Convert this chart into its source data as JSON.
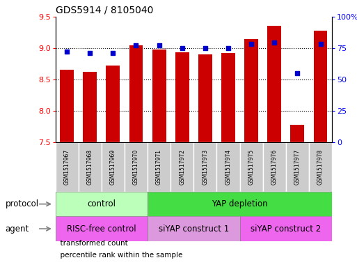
{
  "title": "GDS5914 / 8105040",
  "samples": [
    "GSM1517967",
    "GSM1517968",
    "GSM1517969",
    "GSM1517970",
    "GSM1517971",
    "GSM1517972",
    "GSM1517973",
    "GSM1517974",
    "GSM1517975",
    "GSM1517976",
    "GSM1517977",
    "GSM1517978"
  ],
  "transformed_count": [
    8.65,
    8.62,
    8.72,
    9.04,
    8.97,
    8.93,
    8.9,
    8.92,
    9.14,
    9.35,
    7.78,
    9.27
  ],
  "percentile_rank": [
    72,
    71,
    71,
    77,
    77,
    75,
    75,
    75,
    78,
    79,
    55,
    78
  ],
  "ylim_left": [
    7.5,
    9.5
  ],
  "ylim_right": [
    0,
    100
  ],
  "yticks_left": [
    7.5,
    8.0,
    8.5,
    9.0,
    9.5
  ],
  "yticks_right": [
    0,
    25,
    50,
    75,
    100
  ],
  "ytick_labels_right": [
    "0",
    "25",
    "50",
    "75",
    "100%"
  ],
  "bar_color": "#cc0000",
  "dot_color": "#0000cc",
  "bar_bottom": 7.5,
  "protocol_groups": [
    {
      "label": "control",
      "start": 0,
      "end": 4,
      "color": "#bbffbb"
    },
    {
      "label": "YAP depletion",
      "start": 4,
      "end": 12,
      "color": "#44dd44"
    }
  ],
  "agent_groups": [
    {
      "label": "RISC-free control",
      "start": 0,
      "end": 4,
      "color": "#ee66ee"
    },
    {
      "label": "siYAP construct 1",
      "start": 4,
      "end": 8,
      "color": "#dd99dd"
    },
    {
      "label": "siYAP construct 2",
      "start": 8,
      "end": 12,
      "color": "#ee66ee"
    }
  ],
  "sample_box_color": "#cccccc",
  "protocol_label": "protocol",
  "agent_label": "agent",
  "legend_bar_label": "transformed count",
  "legend_dot_label": "percentile rank within the sample",
  "grid_dotted_ticks": [
    8.0,
    8.5,
    9.0
  ],
  "background_color": "#ffffff"
}
